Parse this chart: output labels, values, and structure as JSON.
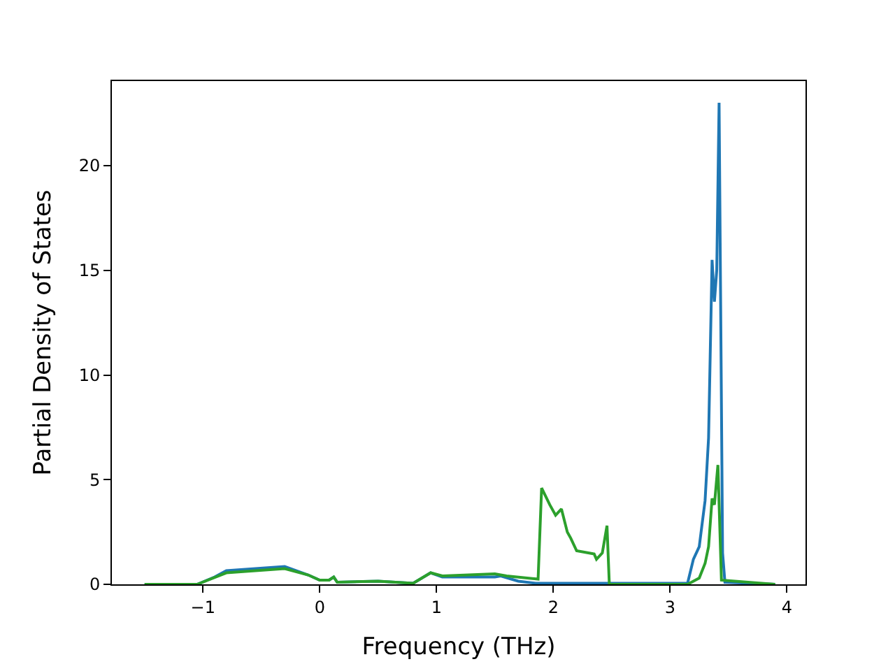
{
  "chart_data": {
    "type": "line",
    "xlabel": "Frequency (THz)",
    "ylabel": "Partial Density of States",
    "xlim": [
      -1.78,
      4.16
    ],
    "ylim": [
      0,
      24.04
    ],
    "xticks": [
      -1,
      0,
      1,
      2,
      3,
      4
    ],
    "yticks": [
      0,
      5,
      10,
      15,
      20
    ],
    "legend": false,
    "series": [
      {
        "color": "#1f77b4",
        "x": [
          -1.5,
          -1.05,
          -0.9,
          -0.8,
          -0.3,
          -0.1,
          0,
          0.08,
          0.12,
          0.15,
          0.5,
          0.8,
          0.95,
          1.05,
          1.5,
          1.55,
          1.7,
          1.85,
          2.5,
          3.15,
          3.2,
          3.25,
          3.3,
          3.33,
          3.36,
          3.38,
          3.4,
          3.42,
          3.45,
          3.47,
          3.9
        ],
        "values": [
          0,
          0,
          0.35,
          0.65,
          0.85,
          0.45,
          0.2,
          0.2,
          0.35,
          0.1,
          0.15,
          0.05,
          0.55,
          0.35,
          0.35,
          0.4,
          0.15,
          0.05,
          0.05,
          0.05,
          1.2,
          1.8,
          4.0,
          7,
          15.5,
          13.5,
          15,
          23,
          1.5,
          0.1,
          0
        ]
      },
      {
        "color": "#2ca02c",
        "x": [
          -1.5,
          -1.05,
          -0.8,
          -0.3,
          -0.1,
          0,
          0.08,
          0.12,
          0.15,
          0.5,
          0.8,
          0.95,
          1.05,
          1.5,
          1.6,
          1.87,
          1.9,
          1.97,
          2.02,
          2.07,
          2.12,
          2.15,
          2.2,
          2.3,
          2.35,
          2.37,
          2.42,
          2.46,
          2.48,
          3.15,
          3.25,
          3.3,
          3.33,
          3.36,
          3.38,
          3.41,
          3.44,
          3.9
        ],
        "values": [
          0,
          0,
          0.55,
          0.75,
          0.45,
          0.2,
          0.2,
          0.35,
          0.1,
          0.15,
          0.05,
          0.55,
          0.4,
          0.5,
          0.4,
          0.25,
          4.6,
          3.8,
          3.3,
          3.6,
          2.5,
          2.2,
          1.6,
          1.5,
          1.45,
          1.2,
          1.5,
          2.8,
          0,
          0,
          0.3,
          1,
          1.8,
          4.1,
          3.8,
          5.7,
          0.2,
          0
        ]
      }
    ]
  }
}
